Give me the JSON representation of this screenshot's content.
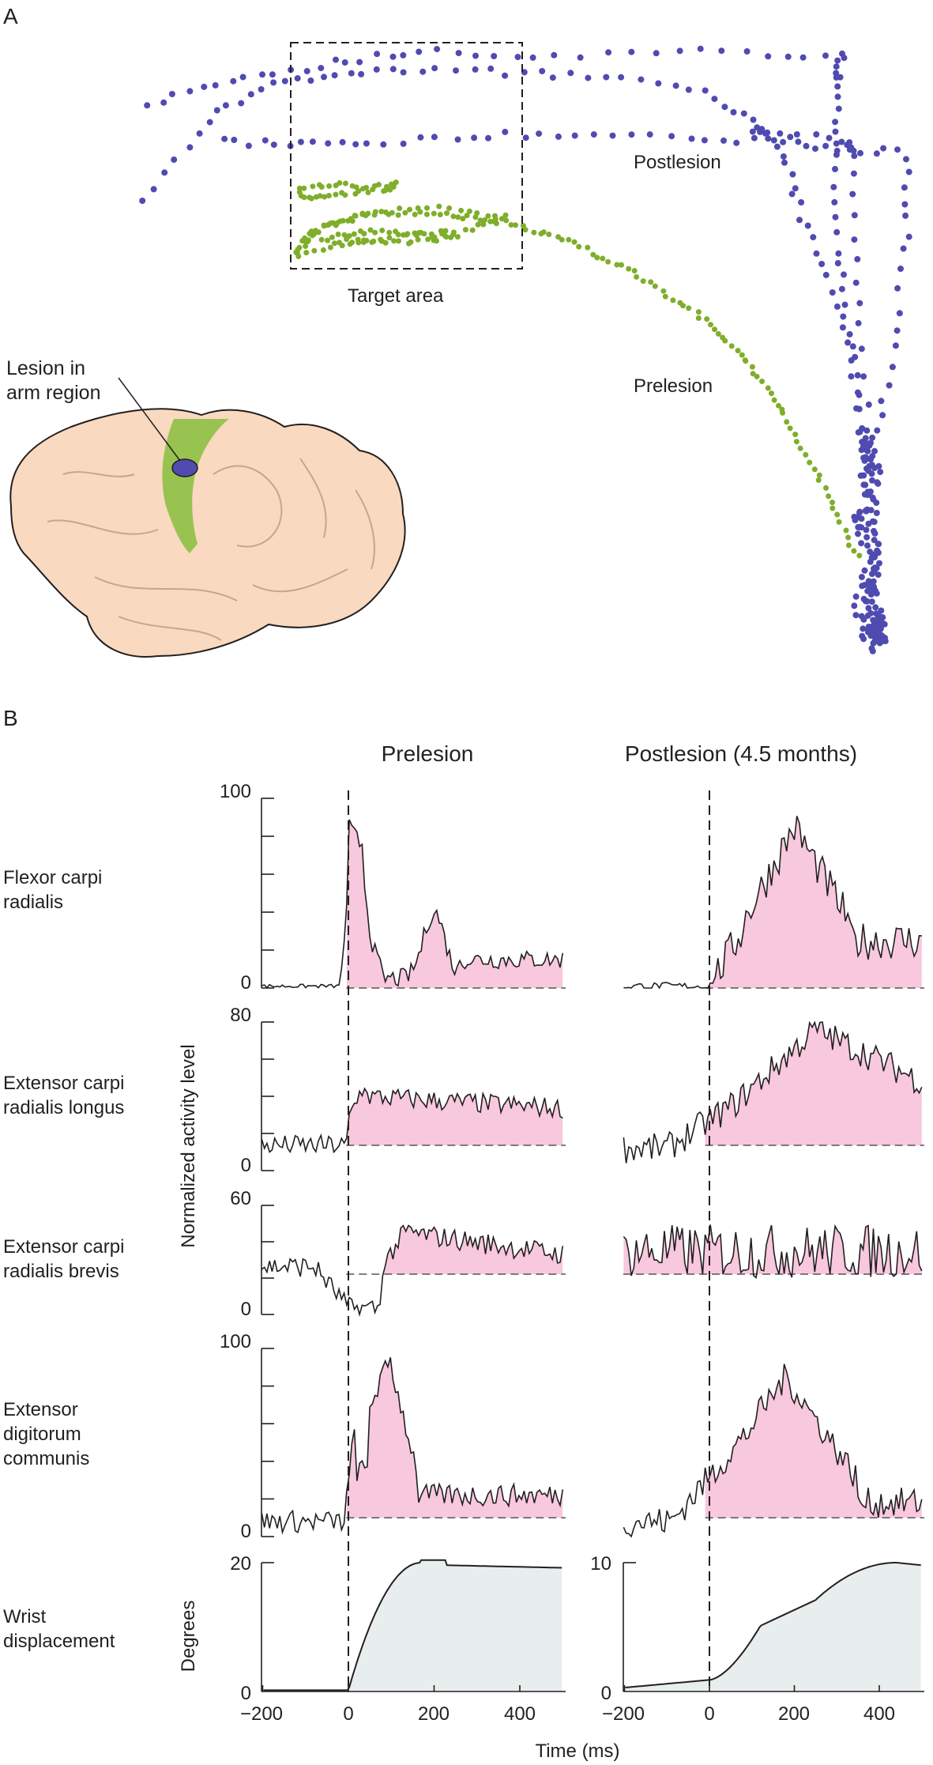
{
  "panel_a": {
    "label": "A",
    "target_label": "Target area",
    "postlesion_label": "Postlesion",
    "prelesion_label": "Prelesion",
    "lesion_label_line1": "Lesion in",
    "lesion_label_line2": "arm region",
    "colors": {
      "postlesion": "#4f4bb0",
      "prelesion": "#7fae2a",
      "brain": "#f9d9bf",
      "arm_region": "#8dc044"
    }
  },
  "panel_b": {
    "label": "B",
    "col_prelesion": "Prelesion",
    "col_postlesion": "Postlesion (4.5 months)",
    "y_axis_label": "Normalized activity level",
    "degrees_label": "Degrees",
    "x_axis_label": "Time (ms)",
    "x_ticks": [
      "−200",
      "0",
      "200",
      "400"
    ],
    "rows": [
      {
        "name_line1": "Flexor carpi",
        "name_line2": "radialis",
        "name_line3": "",
        "ymax": "100",
        "ymin": "0"
      },
      {
        "name_line1": "Extensor carpi",
        "name_line2": "radialis longus",
        "name_line3": "",
        "ymax": "80",
        "ymin": "0"
      },
      {
        "name_line1": "Extensor carpi",
        "name_line2": "radialis brevis",
        "name_line3": "",
        "ymax": "60",
        "ymin": "0"
      },
      {
        "name_line1": "Extensor",
        "name_line2": "digitorum",
        "name_line3": "communis",
        "ymax": "100",
        "ymin": "0"
      }
    ],
    "wrist": {
      "name_line1": "Wrist",
      "name_line2": "displacement",
      "pre_ymax": "20",
      "post_ymax": "10",
      "ymin": "0"
    },
    "colors": {
      "emg_fill": "#f7c8de",
      "wrist_fill": "#e8eeee",
      "trace": "#231f20"
    }
  }
}
